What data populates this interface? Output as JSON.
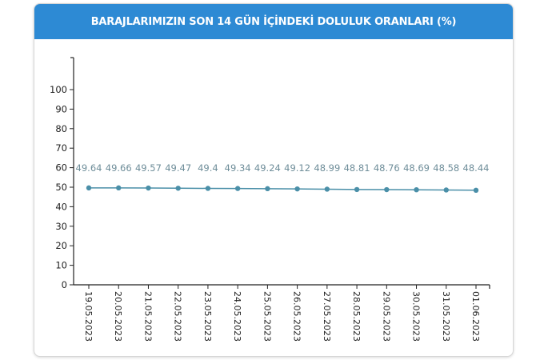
{
  "title": "BARAJLARIMIZIN SON 14 GÜN İÇİNDEKİ DOLULUK ORANLARI (%)",
  "chart_data": {
    "type": "line",
    "title": "BARAJLARIMIZIN SON 14 GÜN İÇİNDEKİ DOLULUK ORANLARI (%)",
    "categories": [
      "19.05.2023",
      "20.05.2023",
      "21.05.2023",
      "22.05.2023",
      "23.05.2023",
      "24.05.2023",
      "25.05.2023",
      "26.05.2023",
      "27.05.2023",
      "28.05.2023",
      "29.05.2023",
      "30.05.2023",
      "31.05.2023",
      "01.06.2023"
    ],
    "values": [
      49.64,
      49.66,
      49.57,
      49.47,
      49.4,
      49.34,
      49.24,
      49.12,
      48.99,
      48.81,
      48.76,
      48.69,
      48.58,
      48.44
    ],
    "data_labels": [
      "49.64",
      "49.66",
      "49.57",
      "49.47",
      "49.4",
      "49.34",
      "49.24",
      "49.12",
      "48.99",
      "48.81",
      "48.76",
      "48.69",
      "48.58",
      "48.44"
    ],
    "yticks": [
      "0",
      "10",
      "20",
      "30",
      "40",
      "50",
      "60",
      "70",
      "80",
      "90",
      "100"
    ],
    "ylim": [
      0,
      100
    ],
    "grid": false,
    "line_color": "#4a8fa8",
    "header_color": "#2d8ad4",
    "label_color": "#6e8d99"
  }
}
